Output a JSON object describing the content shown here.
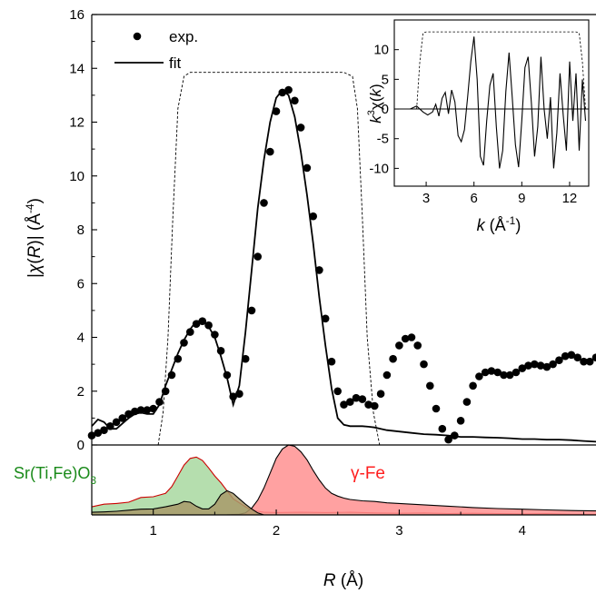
{
  "chart_data": [
    {
      "type": "line",
      "xlabel_italic": "R",
      "xlabel_unit": "(Å)",
      "ylabel_parts": [
        "|",
        "χ",
        "(",
        "R",
        ")| (Å",
        "-4",
        ")"
      ],
      "xlim": [
        0.5,
        4.6
      ],
      "ylim": [
        0,
        16
      ],
      "x_ticks": [
        "1",
        "2",
        "3",
        "4"
      ],
      "x_tick_values": [
        1,
        2,
        3,
        4
      ],
      "y_ticks": [
        "0",
        "2",
        "4",
        "6",
        "8",
        "10",
        "12",
        "14",
        "16"
      ],
      "y_tick_values": [
        0,
        2,
        4,
        6,
        8,
        10,
        12,
        14,
        16
      ],
      "legend": {
        "placement": "top-left",
        "entries": [
          "exp.",
          "fit"
        ]
      },
      "series": [
        {
          "name": "exp.",
          "style": "dots",
          "x": [
            0.5,
            0.55,
            0.6,
            0.65,
            0.7,
            0.75,
            0.8,
            0.85,
            0.9,
            0.95,
            1.0,
            1.05,
            1.1,
            1.15,
            1.2,
            1.25,
            1.3,
            1.35,
            1.4,
            1.45,
            1.5,
            1.55,
            1.6,
            1.65,
            1.7,
            1.75,
            1.8,
            1.85,
            1.9,
            1.95,
            2.0,
            2.05,
            2.1,
            2.15,
            2.2,
            2.25,
            2.3,
            2.35,
            2.4,
            2.45,
            2.5,
            2.55,
            2.6,
            2.65,
            2.7,
            2.75,
            2.8,
            2.85,
            2.9,
            2.95,
            3.0,
            3.05,
            3.1,
            3.15,
            3.2,
            3.25,
            3.3,
            3.35,
            3.4,
            3.45,
            3.5,
            3.55,
            3.6,
            3.65,
            3.7,
            3.75,
            3.8,
            3.85,
            3.9,
            3.95,
            4.0,
            4.05,
            4.1,
            4.15,
            4.2,
            4.25,
            4.3,
            4.35,
            4.4,
            4.45,
            4.5,
            4.55,
            4.6
          ],
          "y": [
            0.35,
            0.45,
            0.55,
            0.7,
            0.85,
            1.0,
            1.15,
            1.25,
            1.3,
            1.3,
            1.35,
            1.6,
            2.0,
            2.6,
            3.2,
            3.8,
            4.2,
            4.5,
            4.6,
            4.45,
            4.1,
            3.5,
            2.6,
            1.8,
            1.9,
            3.2,
            5.0,
            7.0,
            9.0,
            10.9,
            12.4,
            13.1,
            13.2,
            12.8,
            11.8,
            10.3,
            8.5,
            6.5,
            4.7,
            3.1,
            2.0,
            1.5,
            1.6,
            1.75,
            1.7,
            1.5,
            1.45,
            1.9,
            2.6,
            3.2,
            3.7,
            3.95,
            4.0,
            3.7,
            3.0,
            2.2,
            1.35,
            0.6,
            0.2,
            0.35,
            0.9,
            1.6,
            2.2,
            2.55,
            2.7,
            2.75,
            2.7,
            2.6,
            2.6,
            2.7,
            2.85,
            2.95,
            3.0,
            2.95,
            2.9,
            3.0,
            3.15,
            3.3,
            3.35,
            3.25,
            3.1,
            3.1,
            3.25
          ]
        },
        {
          "name": "fit",
          "style": "solid",
          "x": [
            0.5,
            0.55,
            0.6,
            0.65,
            0.7,
            0.75,
            0.8,
            0.85,
            0.9,
            0.95,
            1.0,
            1.05,
            1.1,
            1.15,
            1.2,
            1.25,
            1.3,
            1.35,
            1.4,
            1.45,
            1.5,
            1.55,
            1.6,
            1.65,
            1.7,
            1.75,
            1.8,
            1.85,
            1.9,
            1.95,
            2.0,
            2.05,
            2.1,
            2.15,
            2.2,
            2.25,
            2.3,
            2.35,
            2.4,
            2.45,
            2.5,
            2.55,
            2.6,
            2.65,
            2.7,
            2.75,
            2.8,
            2.85,
            2.9,
            3.0,
            3.1,
            3.2,
            3.3,
            3.4,
            3.5,
            3.6,
            3.7,
            3.8,
            3.9,
            4.0,
            4.1,
            4.2,
            4.3,
            4.4,
            4.5,
            4.6
          ],
          "y": [
            0.7,
            0.95,
            0.85,
            0.6,
            0.6,
            0.8,
            1.0,
            1.15,
            1.2,
            1.15,
            1.15,
            1.5,
            2.2,
            2.8,
            3.4,
            3.9,
            4.3,
            4.6,
            4.6,
            4.4,
            4.0,
            3.3,
            2.5,
            1.5,
            2.2,
            4.2,
            6.5,
            8.8,
            10.6,
            12.0,
            12.9,
            13.2,
            13.0,
            12.2,
            10.9,
            9.3,
            7.5,
            5.5,
            3.7,
            2.1,
            1.0,
            0.75,
            0.7,
            0.7,
            0.7,
            0.68,
            0.65,
            0.6,
            0.55,
            0.5,
            0.45,
            0.4,
            0.38,
            0.35,
            0.3,
            0.3,
            0.28,
            0.27,
            0.25,
            0.22,
            0.22,
            0.2,
            0.2,
            0.18,
            0.15,
            0.12
          ]
        },
        {
          "name": "window",
          "style": "dashed",
          "x": [
            1.04,
            1.08,
            1.12,
            1.16,
            1.2,
            1.25,
            1.3,
            2.55,
            2.62,
            2.66,
            2.7,
            2.74,
            2.79,
            2.84
          ],
          "y": [
            0,
            1.2,
            4,
            8.5,
            12.5,
            13.7,
            13.85,
            13.85,
            13.7,
            12.5,
            8.5,
            4,
            1.2,
            0
          ]
        }
      ],
      "components": {
        "baseline_y": 0,
        "amplitude_scale": 0.25,
        "bottom_y": -2.6,
        "items": [
          {
            "name": "Sr(Ti,Fe)O",
            "subscript": "3",
            "label_color": "#1a8a1a",
            "fill": "#a8d8a0",
            "stroke": "#cc0000",
            "x": [
              0.5,
              0.6,
              0.7,
              0.8,
              0.9,
              1.0,
              1.1,
              1.15,
              1.2,
              1.25,
              1.3,
              1.35,
              1.4,
              1.45,
              1.5,
              1.55,
              1.6,
              1.65,
              1.7,
              1.75,
              1.8,
              1.9,
              2.0,
              2.2,
              2.4,
              2.6,
              2.8,
              3.0,
              3.2,
              3.4,
              3.6,
              3.8,
              4.0,
              4.2,
              4.4,
              4.6
            ],
            "y": [
              1.2,
              1.6,
              1.7,
              1.9,
              2.6,
              2.7,
              3.2,
              4.2,
              5.8,
              7.4,
              8.4,
              8.6,
              8.1,
              7.0,
              5.8,
              4.8,
              3.6,
              2.4,
              1.8,
              1.2,
              0.7,
              0.4,
              0.35,
              0.4,
              0.35,
              0.4,
              0.3,
              0.25,
              0.3,
              0.2,
              0.25,
              0.2,
              0.15,
              0.2,
              0.1,
              0.1
            ]
          },
          {
            "name": "γ-Fe",
            "label_color": "#ff2020",
            "fill": "#ff9090",
            "stroke": "#000000",
            "x": [
              0.5,
              0.8,
              1.0,
              1.2,
              1.4,
              1.6,
              1.7,
              1.75,
              1.8,
              1.85,
              1.9,
              1.95,
              2.0,
              2.05,
              2.1,
              2.15,
              2.2,
              2.25,
              2.3,
              2.35,
              2.4,
              2.45,
              2.5,
              2.55,
              2.6,
              2.7,
              2.8,
              2.9,
              3.0,
              3.2,
              3.4,
              3.6,
              3.8,
              4.0,
              4.2,
              4.4,
              4.6
            ],
            "y": [
              0,
              0,
              0,
              0,
              0,
              0.02,
              0.1,
              0.3,
              1.0,
              2.2,
              4.0,
              6.2,
              8.4,
              9.8,
              10.4,
              10.2,
              9.4,
              8.2,
              6.6,
              5.2,
              4.0,
              3.2,
              2.8,
              2.5,
              2.3,
              2.1,
              2.0,
              1.8,
              1.7,
              1.5,
              1.3,
              1.1,
              0.95,
              0.85,
              0.75,
              0.65,
              0.6
            ]
          },
          {
            "name": "overlap",
            "fill": "#a89a6a",
            "stroke": "#000000",
            "x": [
              0.5,
              0.6,
              0.7,
              0.8,
              0.9,
              1.0,
              1.1,
              1.2,
              1.25,
              1.3,
              1.35,
              1.4,
              1.45,
              1.5,
              1.55,
              1.6,
              1.65,
              1.7,
              1.75,
              1.8,
              1.85,
              1.9,
              2.0,
              2.2,
              2.4,
              2.6,
              2.8,
              3.0,
              3.2,
              3.4,
              3.6,
              3.8,
              4.0,
              4.2,
              4.4,
              4.6
            ],
            "y": [
              0.4,
              0.45,
              0.55,
              0.7,
              0.85,
              0.9,
              1.2,
              1.6,
              2.0,
              1.9,
              1.3,
              0.9,
              0.9,
              1.6,
              3.0,
              3.6,
              3.2,
              2.4,
              1.6,
              0.9,
              0.3,
              0,
              0,
              0,
              0,
              0,
              0,
              0,
              0,
              0,
              0,
              0,
              0,
              0,
              0,
              0
            ]
          }
        ]
      }
    },
    {
      "type": "line",
      "xlabel_italic": "k",
      "xlabel_unit": "(Å",
      "xlabel_sup": "-1",
      "ylabel_parts": [
        "k",
        "3",
        "χ(",
        "k",
        ")"
      ],
      "xlim": [
        1,
        13.2
      ],
      "ylim": [
        -13,
        15
      ],
      "x_ticks": [
        "3",
        "6",
        "9",
        "12"
      ],
      "x_tick_values": [
        3,
        6,
        9,
        12
      ],
      "y_ticks": [
        "10",
        "5",
        "0",
        "-5",
        "-10"
      ],
      "y_tick_values": [
        10,
        5,
        0,
        -5,
        -10
      ],
      "series": [
        {
          "name": "k3chi",
          "style": "solid",
          "x": [
            2.0,
            2.4,
            2.8,
            3.1,
            3.4,
            3.6,
            3.8,
            4.0,
            4.2,
            4.4,
            4.6,
            4.8,
            5.0,
            5.2,
            5.4,
            5.6,
            5.8,
            6.0,
            6.2,
            6.4,
            6.6,
            6.8,
            7.0,
            7.2,
            7.4,
            7.6,
            7.8,
            8.0,
            8.2,
            8.4,
            8.6,
            8.8,
            9.0,
            9.2,
            9.4,
            9.6,
            9.8,
            10.0,
            10.2,
            10.4,
            10.6,
            10.8,
            11.0,
            11.2,
            11.4,
            11.6,
            11.8,
            12.0,
            12.2,
            12.4,
            12.6,
            12.8,
            13.0
          ],
          "y": [
            0,
            0.5,
            -0.5,
            -1,
            -0.5,
            0.8,
            -1.2,
            1.8,
            2.8,
            -0.8,
            3.2,
            1.2,
            -4.5,
            -5.5,
            -3.5,
            2,
            8,
            12.2,
            5,
            -8,
            -9.5,
            -2,
            4,
            6,
            -3,
            -10,
            -7,
            3,
            9.5,
            2,
            -6,
            -9.8,
            -2,
            7,
            8.8,
            1,
            -8,
            -3,
            8.8,
            0,
            -5,
            2,
            -10,
            -4,
            6,
            -1,
            -7,
            8,
            -2,
            6,
            -7,
            5,
            -2
          ]
        },
        {
          "name": "window",
          "style": "dashed",
          "x": [
            2.4,
            2.6,
            2.8,
            3.0,
            12.4,
            12.6,
            12.8,
            13.0
          ],
          "y": [
            0,
            8,
            12.8,
            13,
            13,
            12.8,
            8,
            0
          ]
        }
      ]
    }
  ]
}
